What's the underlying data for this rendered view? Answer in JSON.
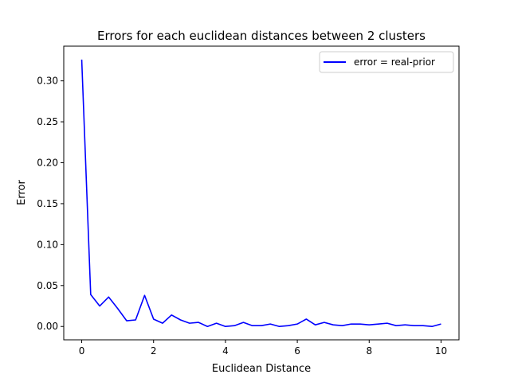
{
  "chart_data": {
    "type": "line",
    "title": "Errors for each euclidean distances between 2 clusters",
    "xlabel": "Euclidean Distance",
    "ylabel": "Error",
    "xlim": [
      -0.5,
      10.5
    ],
    "ylim": [
      -0.0163,
      0.3424
    ],
    "xticks": [
      0,
      2,
      4,
      6,
      8,
      10
    ],
    "xtick_labels": [
      "0",
      "2",
      "4",
      "6",
      "8",
      "10"
    ],
    "yticks": [
      0.0,
      0.05,
      0.1,
      0.15,
      0.2,
      0.25,
      0.3
    ],
    "ytick_labels": [
      "0.00",
      "0.05",
      "0.10",
      "0.15",
      "0.20",
      "0.25",
      "0.30"
    ],
    "grid": false,
    "legend_position": "top-right",
    "series": [
      {
        "name": "error = real-prior",
        "color": "#0000ff",
        "x": [
          0,
          0.25,
          0.5,
          0.75,
          1.0,
          1.25,
          1.5,
          1.75,
          2.0,
          2.25,
          2.5,
          2.75,
          3.0,
          3.25,
          3.5,
          3.75,
          4.0,
          4.25,
          4.5,
          4.75,
          5.0,
          5.25,
          5.5,
          5.75,
          6.0,
          6.25,
          6.5,
          6.75,
          7.0,
          7.25,
          7.5,
          7.75,
          8.0,
          8.25,
          8.5,
          8.75,
          9.0,
          9.25,
          9.5,
          9.75,
          10.0
        ],
        "y": [
          0.326,
          0.039,
          0.025,
          0.036,
          0.022,
          0.007,
          0.008,
          0.038,
          0.009,
          0.004,
          0.014,
          0.008,
          0.004,
          0.005,
          0.0,
          0.004,
          0.0,
          0.001,
          0.005,
          0.001,
          0.001,
          0.003,
          0.0,
          0.001,
          0.003,
          0.009,
          0.002,
          0.005,
          0.002,
          0.001,
          0.003,
          0.003,
          0.002,
          0.003,
          0.004,
          0.001,
          0.002,
          0.001,
          0.001,
          0.0,
          0.003
        ]
      }
    ]
  }
}
